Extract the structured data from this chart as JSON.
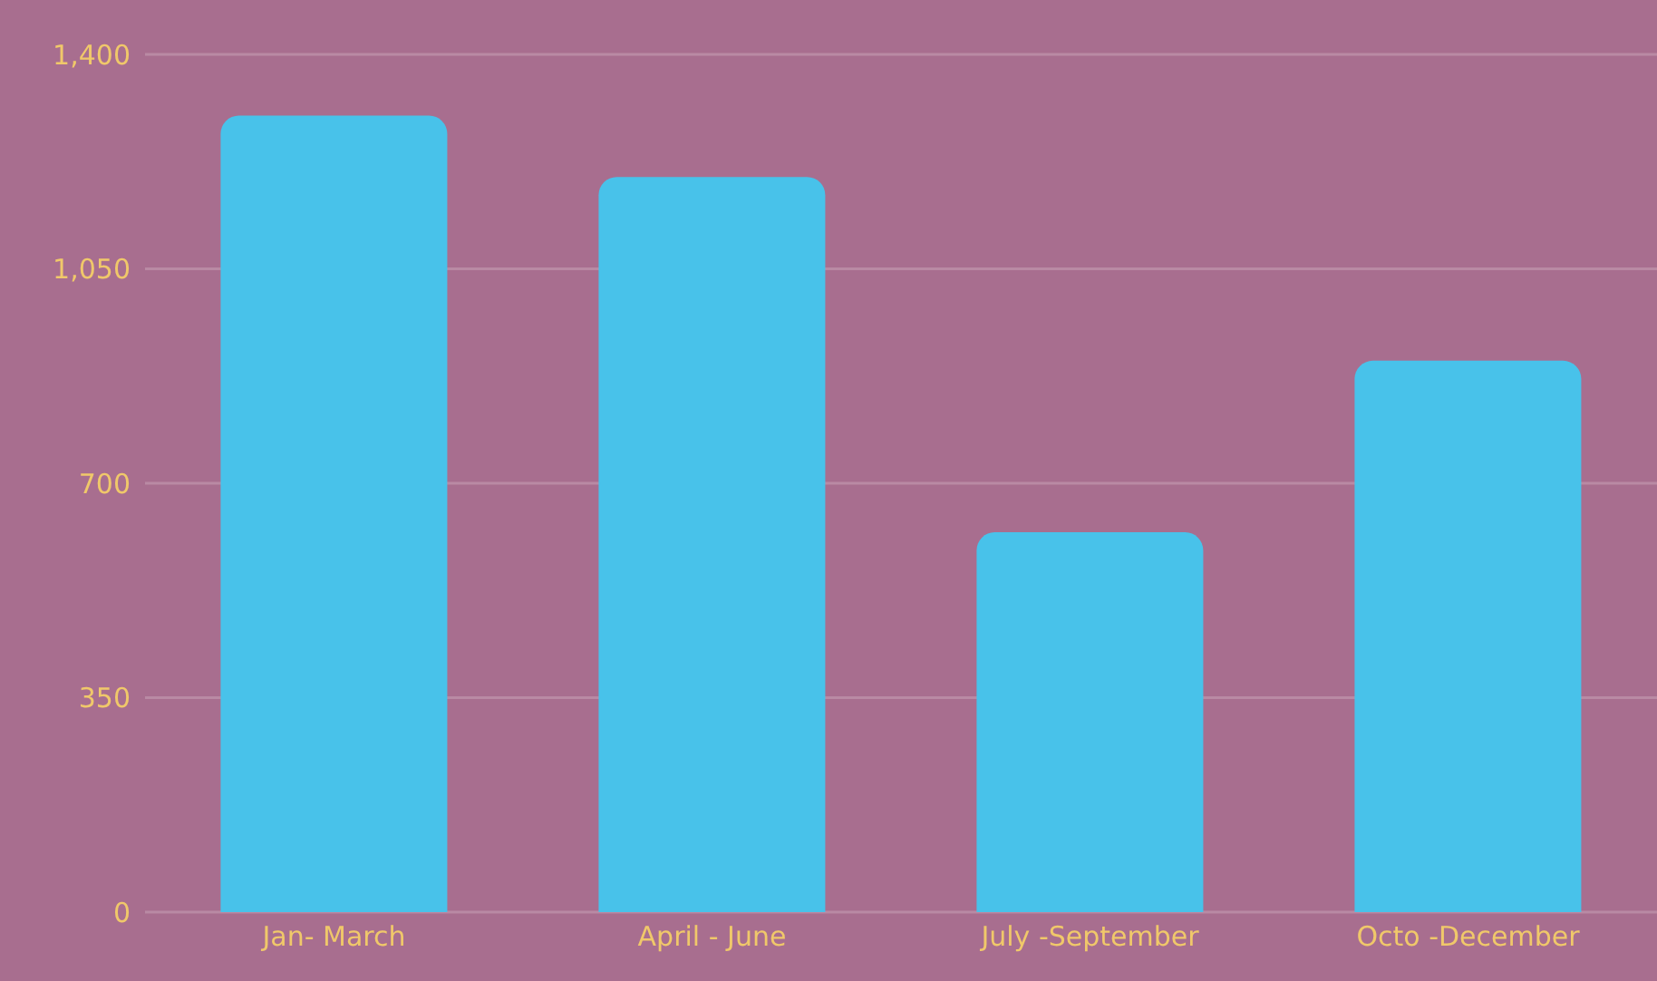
{
  "chart_data": {
    "type": "bar",
    "categories": [
      "Jan- March",
      "April - June",
      "July -September",
      "Octo -December"
    ],
    "values": [
      1300,
      1200,
      620,
      900
    ],
    "color": "#48c2ea",
    "ylim": [
      0,
      1400
    ],
    "yticks": [
      0,
      {
        "value": 350,
        "label": "350"
      },
      {
        "value": 700,
        "label": "700"
      },
      {
        "value": 1050,
        "label": "1,050"
      },
      {
        "value": 1400,
        "label": "1,400"
      }
    ],
    "grid": "y"
  }
}
